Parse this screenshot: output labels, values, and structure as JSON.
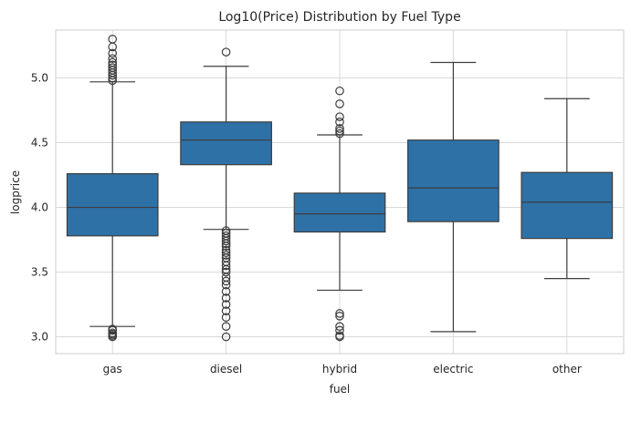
{
  "chart_data": {
    "type": "box",
    "title": "Log10(Price) Distribution by Fuel Type",
    "xlabel": "fuel",
    "ylabel": "logprice",
    "ylim": [
      2.87,
      5.37
    ],
    "yticks": [
      "3.0",
      "3.5",
      "4.0",
      "4.5",
      "5.0"
    ],
    "ytick_values": [
      3.0,
      3.5,
      4.0,
      4.5,
      5.0
    ],
    "grid": true,
    "box_color": "#2e71a7",
    "edge_color": "#3d3d3d",
    "grid_color": "#d9d9d9",
    "categories": [
      "gas",
      "diesel",
      "hybrid",
      "electric",
      "other"
    ],
    "boxes": [
      {
        "category": "gas",
        "whisker_low": 3.08,
        "q1": 3.78,
        "median": 4.0,
        "q3": 4.26,
        "whisker_high": 4.97,
        "outliers": [
          3.0,
          3.01,
          3.02,
          3.03,
          3.05,
          3.06,
          4.98,
          5.0,
          5.02,
          5.04,
          5.06,
          5.08,
          5.1,
          5.12,
          5.15,
          5.19,
          5.24,
          5.3
        ]
      },
      {
        "category": "diesel",
        "whisker_low": 3.83,
        "q1": 4.33,
        "median": 4.52,
        "q3": 4.66,
        "whisker_high": 5.09,
        "outliers": [
          3.0,
          3.08,
          3.15,
          3.2,
          3.25,
          3.3,
          3.35,
          3.4,
          3.43,
          3.46,
          3.5,
          3.52,
          3.55,
          3.58,
          3.61,
          3.63,
          3.65,
          3.67,
          3.7,
          3.72,
          3.74,
          3.76,
          3.78,
          3.8,
          3.82,
          5.2
        ]
      },
      {
        "category": "hybrid",
        "whisker_low": 3.36,
        "q1": 3.81,
        "median": 3.95,
        "q3": 4.11,
        "whisker_high": 4.56,
        "outliers": [
          3.0,
          3.01,
          3.05,
          3.08,
          3.16,
          3.18,
          4.57,
          4.59,
          4.61,
          4.66,
          4.7,
          4.8,
          4.9
        ]
      },
      {
        "category": "electric",
        "whisker_low": 3.04,
        "q1": 3.89,
        "median": 4.15,
        "q3": 4.52,
        "whisker_high": 5.12,
        "outliers": []
      },
      {
        "category": "other",
        "whisker_low": 3.45,
        "q1": 3.76,
        "median": 4.04,
        "q3": 4.27,
        "whisker_high": 4.84,
        "outliers": []
      }
    ]
  }
}
